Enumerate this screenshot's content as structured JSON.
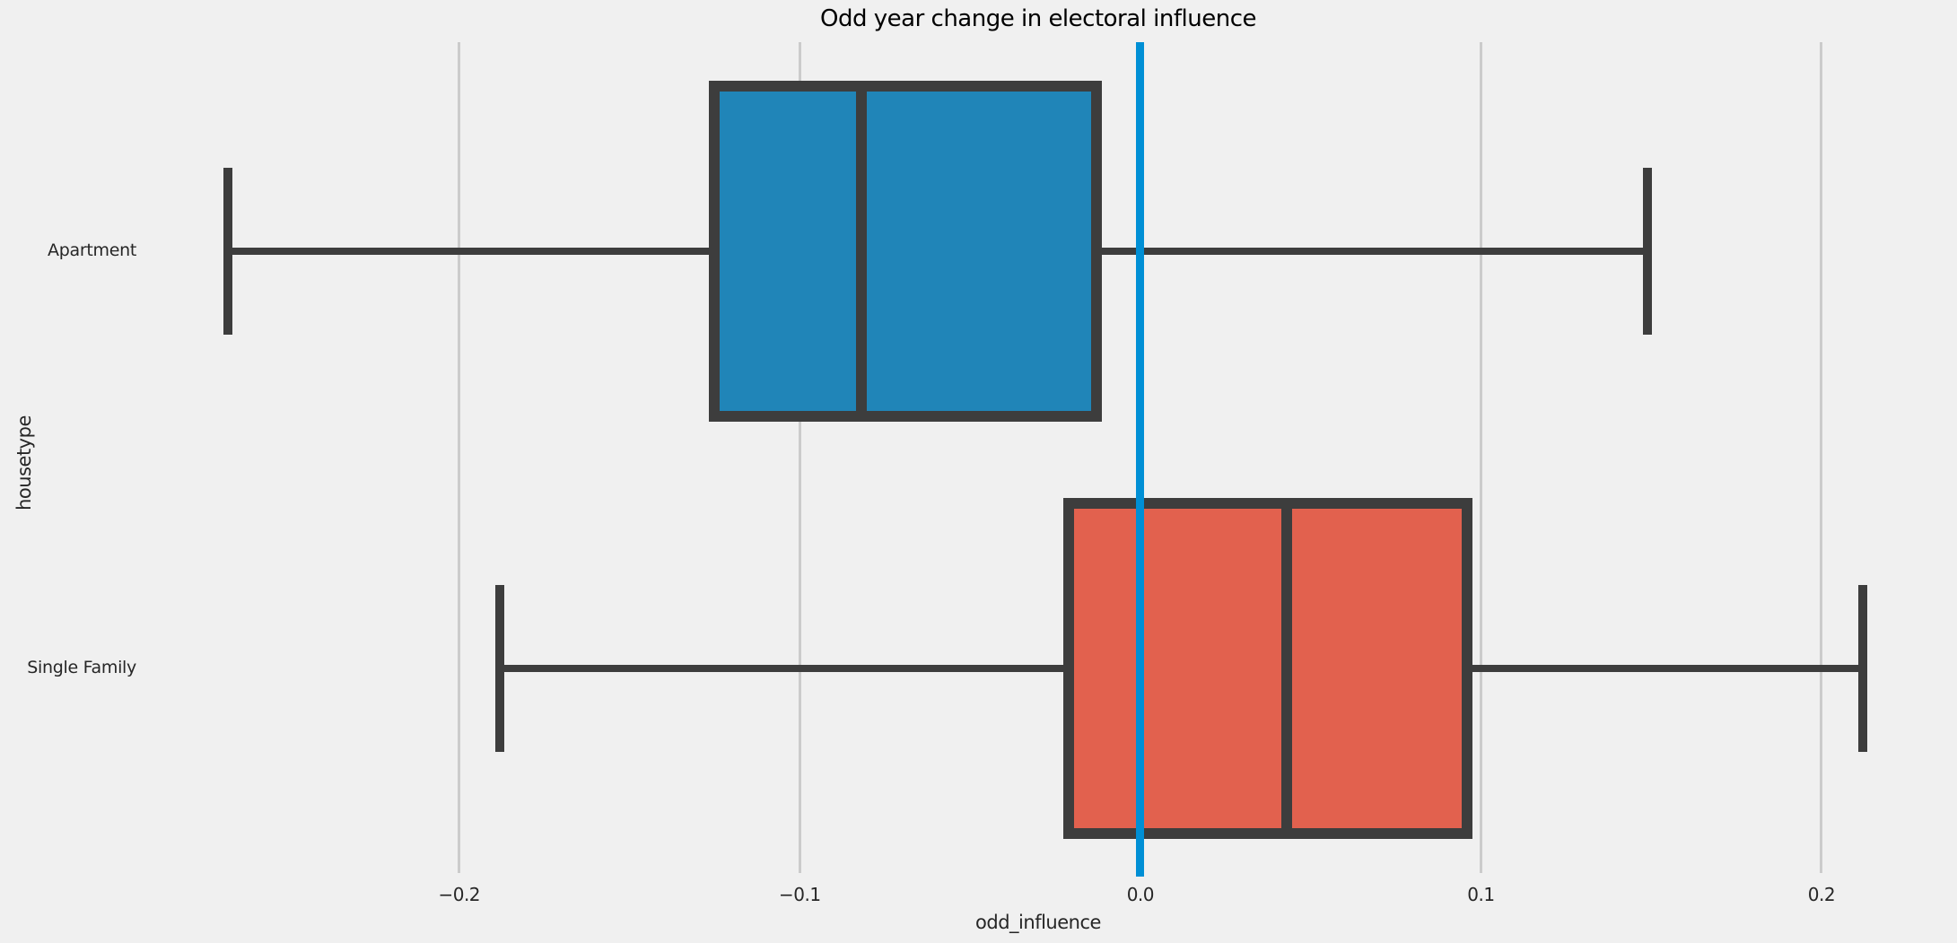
{
  "title": "Odd year change in electoral influence",
  "colors": {
    "background": "#f0f0f0",
    "gridline": "#cbcbcb",
    "box_outline": "#3d3d3d",
    "reference_line": "#008fd5",
    "text": "#262626",
    "apartment_fill": "#2085b8",
    "single_family_fill": "#e2614e"
  },
  "chart_data": {
    "type": "boxplot",
    "orientation": "horizontal",
    "title": "Odd year change in electoral influence",
    "xlabel": "odd_influence",
    "ylabel": "housetype",
    "xlim": [
      -0.294,
      0.234
    ],
    "xticks": [
      -0.2,
      -0.1,
      0.0,
      0.1,
      0.2
    ],
    "xtick_labels": [
      "−0.2",
      "−0.1",
      "0.0",
      "0.1",
      "0.2"
    ],
    "grid": true,
    "reference_line_x": 0.0,
    "categories": [
      "Apartment",
      "Single Family"
    ],
    "series": [
      {
        "name": "Apartment",
        "fill_color": "#2085b8",
        "whisker_low": -0.268,
        "q1": -0.125,
        "median": -0.082,
        "q3": -0.013,
        "whisker_high": 0.149
      },
      {
        "name": "Single Family",
        "fill_color": "#e2614e",
        "whisker_low": -0.188,
        "q1": -0.021,
        "median": 0.043,
        "q3": 0.096,
        "whisker_high": 0.212
      }
    ]
  }
}
